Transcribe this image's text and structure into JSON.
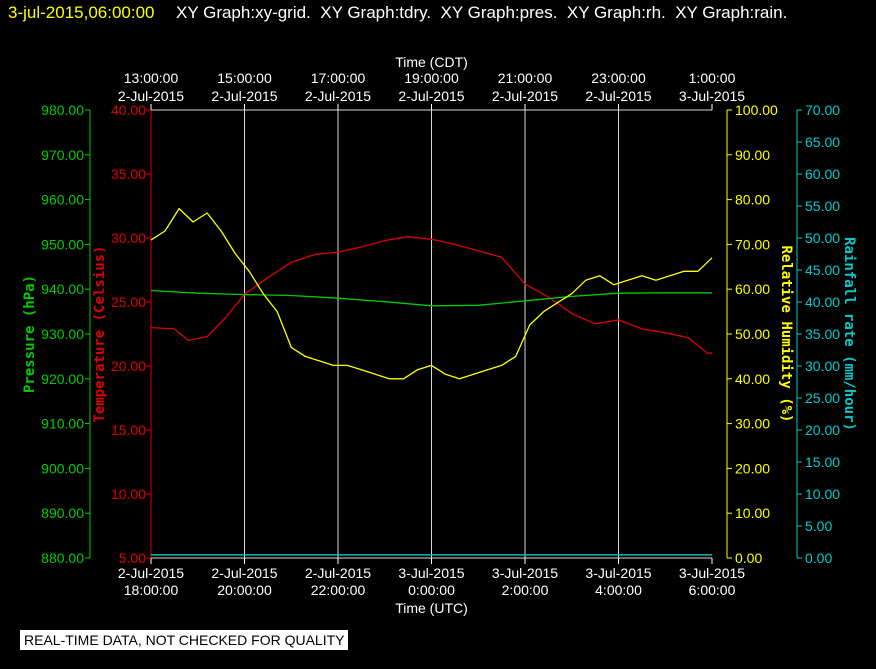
{
  "header": {
    "date": "3-jul-2015,06:00:00",
    "graphs": "XY Graph:xy-grid.  XY Graph:tdry.  XY Graph:pres.  XY Graph:rh.  XY Graph:rain."
  },
  "footer": "REAL-TIME DATA, NOT CHECKED FOR QUALITY",
  "colors": {
    "pressure": "#00cc00",
    "temperature": "#dd0000",
    "humidity": "#ffff00",
    "rain": "#00cccc",
    "grid": "#d8d8d8",
    "text": "#ffffff",
    "background": "#000000"
  },
  "chart_data": {
    "type": "line",
    "grid": true,
    "x_top_title": "Time (CDT)",
    "x_bottom_title": "Time (UTC)",
    "x_range_hours": [
      0,
      12
    ],
    "x_ticks_utc": [
      {
        "date": "2-Jul-2015",
        "time": "18:00:00"
      },
      {
        "date": "2-Jul-2015",
        "time": "20:00:00"
      },
      {
        "date": "2-Jul-2015",
        "time": "22:00:00"
      },
      {
        "date": "3-Jul-2015",
        "time": "0:00:00"
      },
      {
        "date": "3-Jul-2015",
        "time": "2:00:00"
      },
      {
        "date": "3-Jul-2015",
        "time": "4:00:00"
      },
      {
        "date": "3-Jul-2015",
        "time": "6:00:00"
      }
    ],
    "x_ticks_cdt": [
      {
        "time": "13:00:00",
        "date": "2-Jul-2015"
      },
      {
        "time": "15:00:00",
        "date": "2-Jul-2015"
      },
      {
        "time": "17:00:00",
        "date": "2-Jul-2015"
      },
      {
        "time": "19:00:00",
        "date": "2-Jul-2015"
      },
      {
        "time": "21:00:00",
        "date": "2-Jul-2015"
      },
      {
        "time": "23:00:00",
        "date": "2-Jul-2015"
      },
      {
        "time": "1:00:00",
        "date": "3-Jul-2015"
      }
    ],
    "axes": {
      "pressure": {
        "label": "Pressure (hPa)",
        "ylim": [
          880,
          980
        ],
        "ticks": [
          "980.00",
          "970.00",
          "960.00",
          "950.00",
          "940.00",
          "930.00",
          "920.00",
          "910.00",
          "900.00",
          "890.00",
          "880.00"
        ]
      },
      "temperature": {
        "label": "Temperature (Celsius)",
        "ylim": [
          5,
          40
        ],
        "ticks": [
          "40.00",
          "35.00",
          "30.00",
          "25.00",
          "20.00",
          "15.00",
          "10.00",
          "5.00"
        ]
      },
      "humidity": {
        "label": "Relative Humidity (%)",
        "ylim": [
          0,
          100
        ],
        "ticks": [
          "100.00",
          "90.00",
          "80.00",
          "70.00",
          "60.00",
          "50.00",
          "40.00",
          "30.00",
          "20.00",
          "10.00",
          "0.00"
        ]
      },
      "rain": {
        "label": "Rainfall rate (mm/hour)",
        "ylim": [
          0,
          70
        ],
        "ticks": [
          "70.00",
          "65.00",
          "60.00",
          "55.00",
          "50.00",
          "45.00",
          "40.00",
          "35.00",
          "30.00",
          "25.00",
          "20.00",
          "15.00",
          "10.00",
          "5.00",
          "0.00"
        ]
      }
    },
    "series": [
      {
        "key": "temperature",
        "x": [
          0,
          0.5,
          0.8,
          1.2,
          1.6,
          2.0,
          2.5,
          3.0,
          3.5,
          4.0,
          4.5,
          5.0,
          5.5,
          6.0,
          6.5,
          7.0,
          7.5,
          8.0,
          8.5,
          9.0,
          9.5,
          10.0,
          10.5,
          11.0,
          11.5,
          11.9,
          12.0
        ],
        "values": [
          23.0,
          22.9,
          22.0,
          22.3,
          23.8,
          25.6,
          26.9,
          28.1,
          28.7,
          28.9,
          29.3,
          29.8,
          30.1,
          29.9,
          29.5,
          29.0,
          28.5,
          26.4,
          25.4,
          24.1,
          23.3,
          23.6,
          22.9,
          22.6,
          22.2,
          21.0,
          21.0
        ]
      },
      {
        "key": "pressure",
        "x": [
          0,
          1,
          2,
          3,
          4,
          5,
          6,
          7,
          8,
          9,
          10,
          11,
          12
        ],
        "values": [
          939.7,
          939.1,
          938.8,
          938.6,
          938.0,
          937.2,
          936.3,
          936.4,
          937.4,
          938.4,
          939.1,
          939.2,
          939.2
        ]
      },
      {
        "key": "humidity",
        "x": [
          0,
          0.3,
          0.6,
          0.9,
          1.2,
          1.5,
          1.8,
          2.1,
          2.4,
          2.7,
          3.0,
          3.3,
          3.6,
          3.9,
          4.2,
          4.5,
          4.8,
          5.1,
          5.4,
          5.7,
          6.0,
          6.3,
          6.6,
          6.9,
          7.2,
          7.5,
          7.8,
          8.1,
          8.4,
          8.7,
          9.0,
          9.3,
          9.6,
          9.9,
          10.2,
          10.5,
          10.8,
          11.1,
          11.4,
          11.7,
          11.9,
          12.0
        ],
        "values": [
          71,
          73,
          78,
          75,
          77,
          73,
          68,
          64,
          59,
          55,
          47,
          45,
          44,
          43,
          43,
          42,
          41,
          40,
          40,
          42,
          43,
          41,
          40,
          41,
          42,
          43,
          45,
          52,
          55,
          57,
          59,
          62,
          63,
          61,
          62,
          63,
          62,
          63,
          64,
          64,
          66,
          67
        ]
      },
      {
        "key": "rain",
        "x": [
          0,
          12
        ],
        "values": [
          0.5,
          0.5
        ]
      }
    ]
  }
}
